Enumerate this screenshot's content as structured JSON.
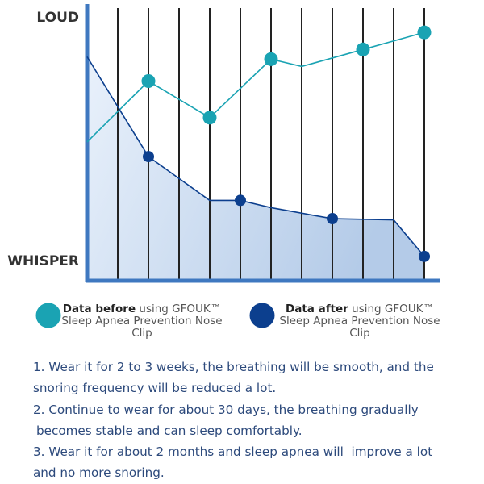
{
  "chart_data": {
    "type": "line",
    "xlim": [
      0,
      11.5
    ],
    "xticks": [
      1,
      2,
      3,
      4,
      5,
      6,
      7,
      8,
      9,
      10,
      11
    ],
    "ylim": [
      -8,
      104
    ],
    "yticks": [
      {
        "value": 100,
        "label": "LOUD"
      },
      {
        "value": 0,
        "label": "WHISPER"
      }
    ],
    "series": [
      {
        "name": "Data before",
        "legend_note": "using GFOUK™ Sleep Apnea Prevention Nose Clip",
        "color": "#1aa3b3",
        "x": [
          0,
          2,
          4,
          6,
          7,
          9,
          11
        ],
        "values": [
          49,
          74,
          59,
          83,
          80,
          87,
          94
        ],
        "markers": [
          false,
          true,
          true,
          true,
          false,
          true,
          true
        ]
      },
      {
        "name": "Data after",
        "legend_note": "using GFOUK™ Sleep Apnea Prevention Nose Clip",
        "color": "#0c3f8e",
        "x": [
          0,
          2,
          4,
          5,
          6,
          8,
          10,
          11
        ],
        "values": [
          84,
          43,
          25,
          25,
          22,
          17.5,
          17,
          2
        ],
        "markers": [
          false,
          true,
          false,
          true,
          false,
          true,
          false,
          true
        ],
        "area": true
      }
    ]
  },
  "notes": [
    [
      "1. Wear it for 2 to 3 weeks, the breathing will be smooth, and the",
      "snoring frequency will be reduced a lot."
    ],
    [
      "2. Continue to wear for about 30 days, the breathing gradually",
      "becomes stable and can sleep comfortably."
    ],
    [
      "3. Wear it for about 2 months and sleep apnea will  improve a lot",
      "and no more snoring."
    ]
  ]
}
